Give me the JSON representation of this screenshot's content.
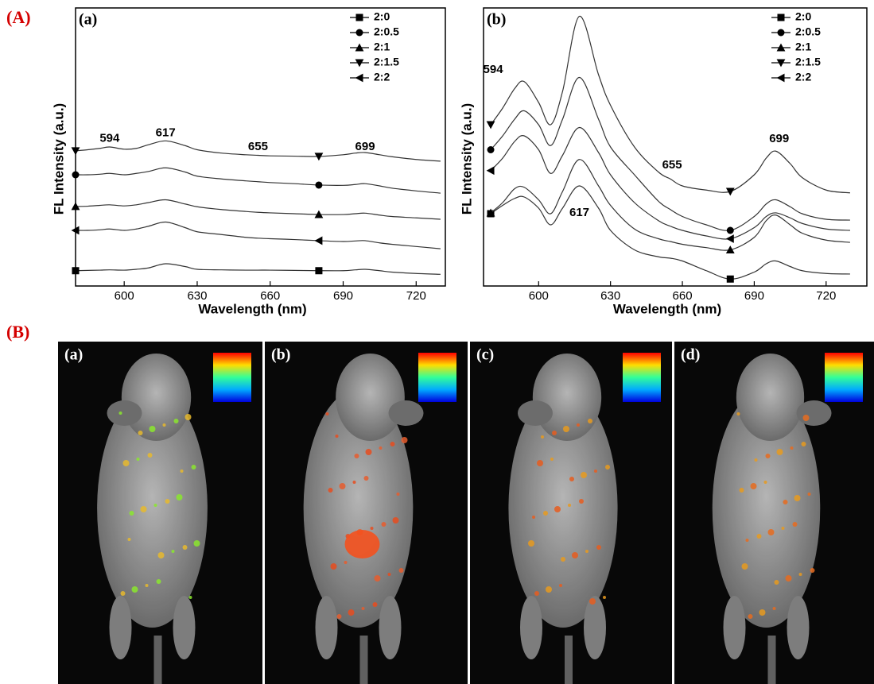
{
  "figure_labels": [
    "(A)",
    "(B)"
  ],
  "chart_data": [
    {
      "type": "line",
      "panel_label": "(a)",
      "x_label": "Wavelength (nm)",
      "y_label": "FL Intensity (a.u.)",
      "x": [
        580,
        585,
        590,
        594,
        600,
        605,
        610,
        617,
        625,
        630,
        640,
        650,
        655,
        660,
        670,
        680,
        690,
        695,
        699,
        705,
        710,
        720,
        730
      ],
      "xlim": [
        580,
        732
      ],
      "xticks": [
        600,
        630,
        660,
        690,
        720
      ],
      "ylim": [
        0,
        10
      ],
      "legend": "upper right",
      "color": "#333333",
      "series": [
        {
          "name": "2:0",
          "marker": "square",
          "values": [
            0.55,
            0.56,
            0.57,
            0.58,
            0.57,
            0.6,
            0.65,
            0.8,
            0.7,
            0.6,
            0.58,
            0.57,
            0.57,
            0.57,
            0.56,
            0.55,
            0.55,
            0.58,
            0.6,
            0.55,
            0.5,
            0.45,
            0.42
          ]
        },
        {
          "name": "2:0.5",
          "marker": "circle",
          "values": [
            4.0,
            4.0,
            4.02,
            4.05,
            4.0,
            4.05,
            4.12,
            4.25,
            4.1,
            3.95,
            3.85,
            3.78,
            3.75,
            3.72,
            3.68,
            3.63,
            3.62,
            3.65,
            3.68,
            3.6,
            3.52,
            3.42,
            3.34
          ]
        },
        {
          "name": "2:1",
          "marker": "triangle-up",
          "values": [
            2.86,
            2.87,
            2.9,
            2.92,
            2.88,
            2.92,
            3.0,
            3.1,
            2.95,
            2.85,
            2.75,
            2.68,
            2.65,
            2.63,
            2.6,
            2.57,
            2.57,
            2.6,
            2.62,
            2.55,
            2.5,
            2.45,
            2.4
          ]
        },
        {
          "name": "2:1.5",
          "marker": "triangle-down",
          "values": [
            4.86,
            4.9,
            4.95,
            5.0,
            4.92,
            4.95,
            5.08,
            5.22,
            5.05,
            4.9,
            4.78,
            4.72,
            4.7,
            4.68,
            4.67,
            4.66,
            4.72,
            4.78,
            4.8,
            4.72,
            4.65,
            4.55,
            4.49
          ]
        },
        {
          "name": "2:2",
          "marker": "triangle-left",
          "values": [
            2.0,
            2.0,
            2.02,
            2.05,
            2.0,
            2.05,
            2.15,
            2.3,
            2.1,
            1.95,
            1.85,
            1.75,
            1.72,
            1.7,
            1.67,
            1.63,
            1.6,
            1.62,
            1.63,
            1.55,
            1.5,
            1.42,
            1.34
          ]
        }
      ],
      "annotations": [
        {
          "text": "594",
          "x": 594,
          "y": 5.3
        },
        {
          "text": "617",
          "x": 617,
          "y": 5.5
        },
        {
          "text": "655",
          "x": 655,
          "y": 5.0
        },
        {
          "text": "699",
          "x": 699,
          "y": 5.0
        }
      ]
    },
    {
      "type": "line",
      "panel_label": "(b)",
      "x_label": "Wavelength (nm)",
      "y_label": "FL Intensity (a.u.)",
      "x": [
        580,
        585,
        590,
        594,
        600,
        605,
        610,
        617,
        625,
        630,
        640,
        650,
        655,
        660,
        670,
        680,
        690,
        695,
        699,
        705,
        710,
        720,
        730
      ],
      "xlim": [
        577,
        737
      ],
      "xticks": [
        600,
        630,
        660,
        690,
        720
      ],
      "ylim": [
        0,
        10
      ],
      "legend": "upper right",
      "color": "#333333",
      "series": [
        {
          "name": "2:0",
          "marker": "square",
          "values": [
            2.6,
            2.9,
            3.15,
            3.2,
            2.8,
            2.2,
            2.8,
            3.6,
            2.8,
            2.0,
            1.3,
            1.05,
            1.0,
            0.9,
            0.55,
            0.25,
            0.5,
            0.8,
            0.9,
            0.7,
            0.55,
            0.45,
            0.43
          ]
        },
        {
          "name": "2:0.5",
          "marker": "circle",
          "values": [
            4.9,
            5.4,
            6.0,
            6.3,
            5.8,
            5.05,
            6.0,
            7.5,
            6.0,
            5.0,
            4.0,
            3.05,
            2.75,
            2.5,
            2.2,
            2.0,
            2.5,
            2.95,
            3.1,
            2.85,
            2.6,
            2.4,
            2.37
          ]
        },
        {
          "name": "2:1",
          "marker": "triangle-up",
          "values": [
            2.63,
            3.0,
            3.5,
            3.55,
            3.1,
            2.6,
            3.4,
            4.55,
            3.6,
            2.9,
            2.05,
            1.7,
            1.6,
            1.5,
            1.38,
            1.3,
            1.75,
            2.35,
            2.55,
            2.2,
            1.9,
            1.65,
            1.57
          ]
        },
        {
          "name": "2:1.5",
          "marker": "triangle-down",
          "values": [
            5.8,
            6.4,
            7.1,
            7.35,
            6.6,
            5.8,
            7.0,
            9.7,
            7.6,
            6.5,
            5.0,
            4.1,
            3.85,
            3.6,
            3.45,
            3.4,
            4.0,
            4.6,
            4.85,
            4.4,
            3.9,
            3.45,
            3.35
          ]
        },
        {
          "name": "2:2",
          "marker": "triangle-left",
          "values": [
            4.15,
            4.6,
            5.2,
            5.4,
            4.9,
            4.05,
            4.7,
            5.7,
            4.8,
            4.0,
            3.0,
            2.35,
            2.15,
            2.0,
            1.8,
            1.7,
            2.1,
            2.5,
            2.63,
            2.45,
            2.25,
            2.05,
            2.0
          ]
        }
      ],
      "annotations": [
        {
          "text": "594",
          "x": 581,
          "y": 7.77
        },
        {
          "text": "617",
          "x": 617,
          "y": 2.63
        },
        {
          "text": "655",
          "x": 655.7,
          "y": 4.34
        },
        {
          "text": "699",
          "x": 700.4,
          "y": 5.29
        }
      ]
    }
  ],
  "images": {
    "panels": [
      "(a)",
      "(b)",
      "(c)",
      "(d)"
    ]
  }
}
